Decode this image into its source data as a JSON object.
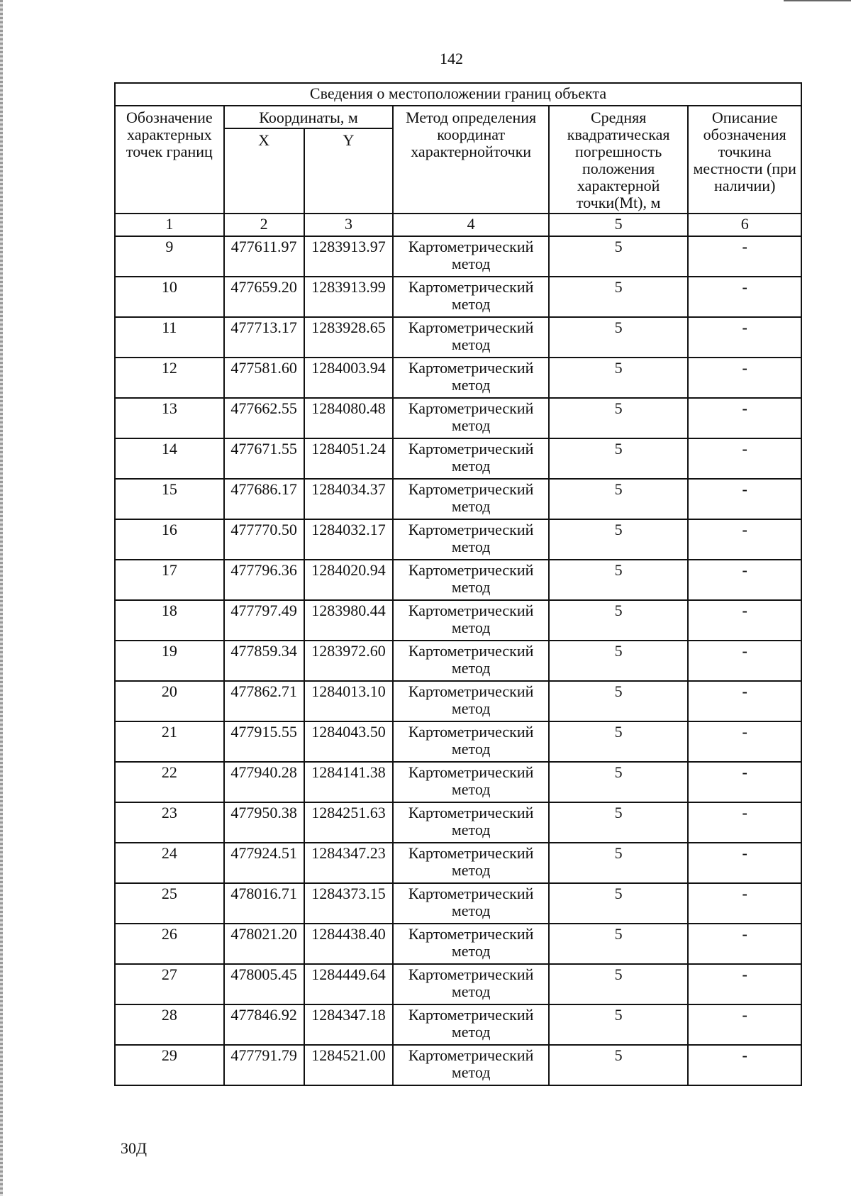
{
  "page_number": "142",
  "footer": "30Д",
  "table": {
    "title": "Сведения о местоположении границ объекта",
    "headers": {
      "col1": "Обозначение характерных точек границ",
      "coords": "Координаты, м",
      "x": "X",
      "y": "Y",
      "col4": "Метод определения координат характернойточки",
      "col5": "Средняя квадратическая погрешность положения характерной точки(Mt), м",
      "col6": "Описание обозначения точкина местности (при наличии)"
    },
    "column_numbers": [
      "1",
      "2",
      "3",
      "4",
      "5",
      "6"
    ],
    "rows": [
      [
        "9",
        "477611.97",
        "1283913.97",
        "Картометрический метод",
        "5",
        "-"
      ],
      [
        "10",
        "477659.20",
        "1283913.99",
        "Картометрический метод",
        "5",
        "-"
      ],
      [
        "11",
        "477713.17",
        "1283928.65",
        "Картометрический метод",
        "5",
        "-"
      ],
      [
        "12",
        "477581.60",
        "1284003.94",
        "Картометрический метод",
        "5",
        "-"
      ],
      [
        "13",
        "477662.55",
        "1284080.48",
        "Картометрический метод",
        "5",
        "-"
      ],
      [
        "14",
        "477671.55",
        "1284051.24",
        "Картометрический метод",
        "5",
        "-"
      ],
      [
        "15",
        "477686.17",
        "1284034.37",
        "Картометрический метод",
        "5",
        "-"
      ],
      [
        "16",
        "477770.50",
        "1284032.17",
        "Картометрический метод",
        "5",
        "-"
      ],
      [
        "17",
        "477796.36",
        "1284020.94",
        "Картометрический метод",
        "5",
        "-"
      ],
      [
        "18",
        "477797.49",
        "1283980.44",
        "Картометрический метод",
        "5",
        "-"
      ],
      [
        "19",
        "477859.34",
        "1283972.60",
        "Картометрический метод",
        "5",
        "-"
      ],
      [
        "20",
        "477862.71",
        "1284013.10",
        "Картометрический метод",
        "5",
        "-"
      ],
      [
        "21",
        "477915.55",
        "1284043.50",
        "Картометрический метод",
        "5",
        "-"
      ],
      [
        "22",
        "477940.28",
        "1284141.38",
        "Картометрический метод",
        "5",
        "-"
      ],
      [
        "23",
        "477950.38",
        "1284251.63",
        "Картометрический метод",
        "5",
        "-"
      ],
      [
        "24",
        "477924.51",
        "1284347.23",
        "Картометрический метод",
        "5",
        "-"
      ],
      [
        "25",
        "478016.71",
        "1284373.15",
        "Картометрический метод",
        "5",
        "-"
      ],
      [
        "26",
        "478021.20",
        "1284438.40",
        "Картометрический метод",
        "5",
        "-"
      ],
      [
        "27",
        "478005.45",
        "1284449.64",
        "Картометрический метод",
        "5",
        "-"
      ],
      [
        "28",
        "477846.92",
        "1284347.18",
        "Картометрический метод",
        "5",
        "-"
      ],
      [
        "29",
        "477791.79",
        "1284521.00",
        "Картометрический метод",
        "5",
        "-"
      ]
    ]
  }
}
